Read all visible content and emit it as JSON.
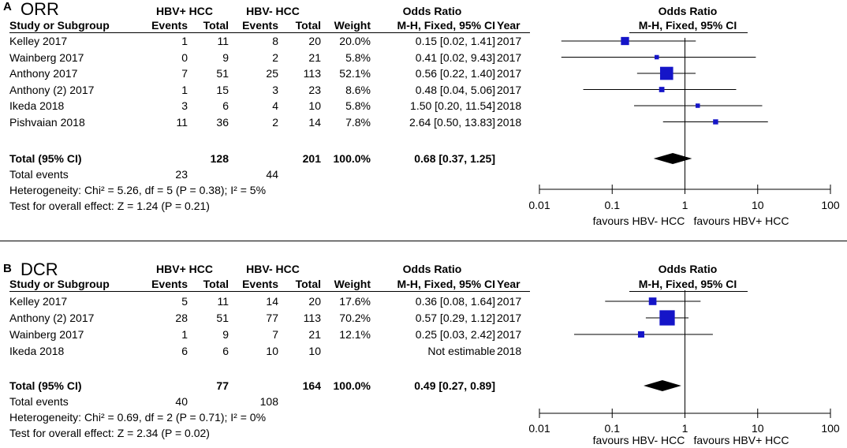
{
  "chart_data": [
    {
      "type": "forest",
      "panel": "A",
      "title": "ORR",
      "group1": "HBV+ HCC",
      "group2": "HBV- HCC",
      "columns": {
        "study": "Study or Subgroup",
        "events": "Events",
        "total": "Total",
        "weight": "Weight",
        "or_header": "Odds Ratio",
        "or_method": "M-H, Fixed, 95% CI",
        "year": "Year"
      },
      "studies": [
        {
          "name": "Kelley 2017",
          "e1": "1",
          "n1": "11",
          "e2": "8",
          "n2": "20",
          "weight": "20.0%",
          "or_text": "0.15 [0.02, 1.41]",
          "year": "2017",
          "or": 0.15,
          "lo": 0.02,
          "hi": 1.41,
          "w": 20.0
        },
        {
          "name": "Wainberg 2017",
          "e1": "0",
          "n1": "9",
          "e2": "2",
          "n2": "21",
          "weight": "5.8%",
          "or_text": "0.41 [0.02, 9.43]",
          "year": "2017",
          "or": 0.41,
          "lo": 0.02,
          "hi": 9.43,
          "w": 5.8
        },
        {
          "name": "Anthony 2017",
          "e1": "7",
          "n1": "51",
          "e2": "25",
          "n2": "113",
          "weight": "52.1%",
          "or_text": "0.56 [0.22, 1.40]",
          "year": "2017",
          "or": 0.56,
          "lo": 0.22,
          "hi": 1.4,
          "w": 52.1
        },
        {
          "name": "Anthony (2) 2017",
          "e1": "1",
          "n1": "15",
          "e2": "3",
          "n2": "23",
          "weight": "8.6%",
          "or_text": "0.48 [0.04, 5.06]",
          "year": "2017",
          "or": 0.48,
          "lo": 0.04,
          "hi": 5.06,
          "w": 8.6
        },
        {
          "name": "Ikeda 2018",
          "e1": "3",
          "n1": "6",
          "e2": "4",
          "n2": "10",
          "weight": "5.8%",
          "or_text": "1.50 [0.20, 11.54]",
          "year": "2018",
          "or": 1.5,
          "lo": 0.2,
          "hi": 11.54,
          "w": 5.8
        },
        {
          "name": "Pishvaian 2018",
          "e1": "11",
          "n1": "36",
          "e2": "2",
          "n2": "14",
          "weight": "7.8%",
          "or_text": "2.64 [0.50, 13.83]",
          "year": "2018",
          "or": 2.64,
          "lo": 0.5,
          "hi": 13.83,
          "w": 7.8
        }
      ],
      "total": {
        "label": "Total (95% CI)",
        "n1": "128",
        "n2": "201",
        "weight": "100.0%",
        "or_text": "0.68 [0.37, 1.25]",
        "or": 0.68,
        "lo": 0.37,
        "hi": 1.25
      },
      "total_events": {
        "label": "Total events",
        "e1": "23",
        "e2": "44"
      },
      "heterogeneity": "Heterogeneity: Chi² = 5.26, df = 5 (P = 0.38); I² = 5%",
      "overall_effect": "Test for overall effect: Z = 1.24 (P = 0.21)",
      "plot_header": "Odds Ratio",
      "plot_subheader": "M-H, Fixed, 95% CI",
      "axis": {
        "scale": "log",
        "range": [
          0.01,
          100
        ],
        "ticks": [
          0.01,
          0.1,
          1,
          10,
          100
        ],
        "tick_labels": [
          "0.01",
          "0.1",
          "1",
          "10",
          "100"
        ]
      },
      "favours_left": "favours HBV- HCC",
      "favours_right": "favours HBV+ HCC"
    },
    {
      "type": "forest",
      "panel": "B",
      "title": "DCR",
      "group1": "HBV+ HCC",
      "group2": "HBV- HCC",
      "columns": {
        "study": "Study or Subgroup",
        "events": "Events",
        "total": "Total",
        "weight": "Weight",
        "or_header": "Odds Ratio",
        "or_method": "M-H, Fixed, 95% CI",
        "year": "Year"
      },
      "studies": [
        {
          "name": "Kelley 2017",
          "e1": "5",
          "n1": "11",
          "e2": "14",
          "n2": "20",
          "weight": "17.6%",
          "or_text": "0.36 [0.08, 1.64]",
          "year": "2017",
          "or": 0.36,
          "lo": 0.08,
          "hi": 1.64,
          "w": 17.6
        },
        {
          "name": "Anthony (2) 2017",
          "e1": "28",
          "n1": "51",
          "e2": "77",
          "n2": "113",
          "weight": "70.2%",
          "or_text": "0.57 [0.29, 1.12]",
          "year": "2017",
          "or": 0.57,
          "lo": 0.29,
          "hi": 1.12,
          "w": 70.2
        },
        {
          "name": "Wainberg 2017",
          "e1": "1",
          "n1": "9",
          "e2": "7",
          "n2": "21",
          "weight": "12.1%",
          "or_text": "0.25 [0.03, 2.42]",
          "year": "2017",
          "or": 0.25,
          "lo": 0.03,
          "hi": 2.42,
          "w": 12.1
        },
        {
          "name": "Ikeda 2018",
          "e1": "6",
          "n1": "6",
          "e2": "10",
          "n2": "10",
          "weight": "",
          "or_text": "Not estimable",
          "year": "2018",
          "or": null,
          "lo": null,
          "hi": null,
          "w": 0
        }
      ],
      "total": {
        "label": "Total (95% CI)",
        "n1": "77",
        "n2": "164",
        "weight": "100.0%",
        "or_text": "0.49 [0.27, 0.89]",
        "or": 0.49,
        "lo": 0.27,
        "hi": 0.89
      },
      "total_events": {
        "label": "Total events",
        "e1": "40",
        "e2": "108"
      },
      "heterogeneity": "Heterogeneity: Chi² = 0.69, df = 2 (P = 0.71); I² = 0%",
      "overall_effect": "Test for overall effect: Z = 2.34 (P = 0.02)",
      "plot_header": "Odds Ratio",
      "plot_subheader": "M-H, Fixed, 95% CI",
      "axis": {
        "scale": "log",
        "range": [
          0.01,
          100
        ],
        "ticks": [
          0.01,
          0.1,
          1,
          10,
          100
        ],
        "tick_labels": [
          "0.01",
          "0.1",
          "1",
          "10",
          "100"
        ]
      },
      "favours_left": "favours HBV- HCC",
      "favours_right": "favours HBV+ HCC"
    }
  ],
  "colors": {
    "marker": "#1515c8",
    "diamond": "#000000",
    "line": "#000000"
  }
}
